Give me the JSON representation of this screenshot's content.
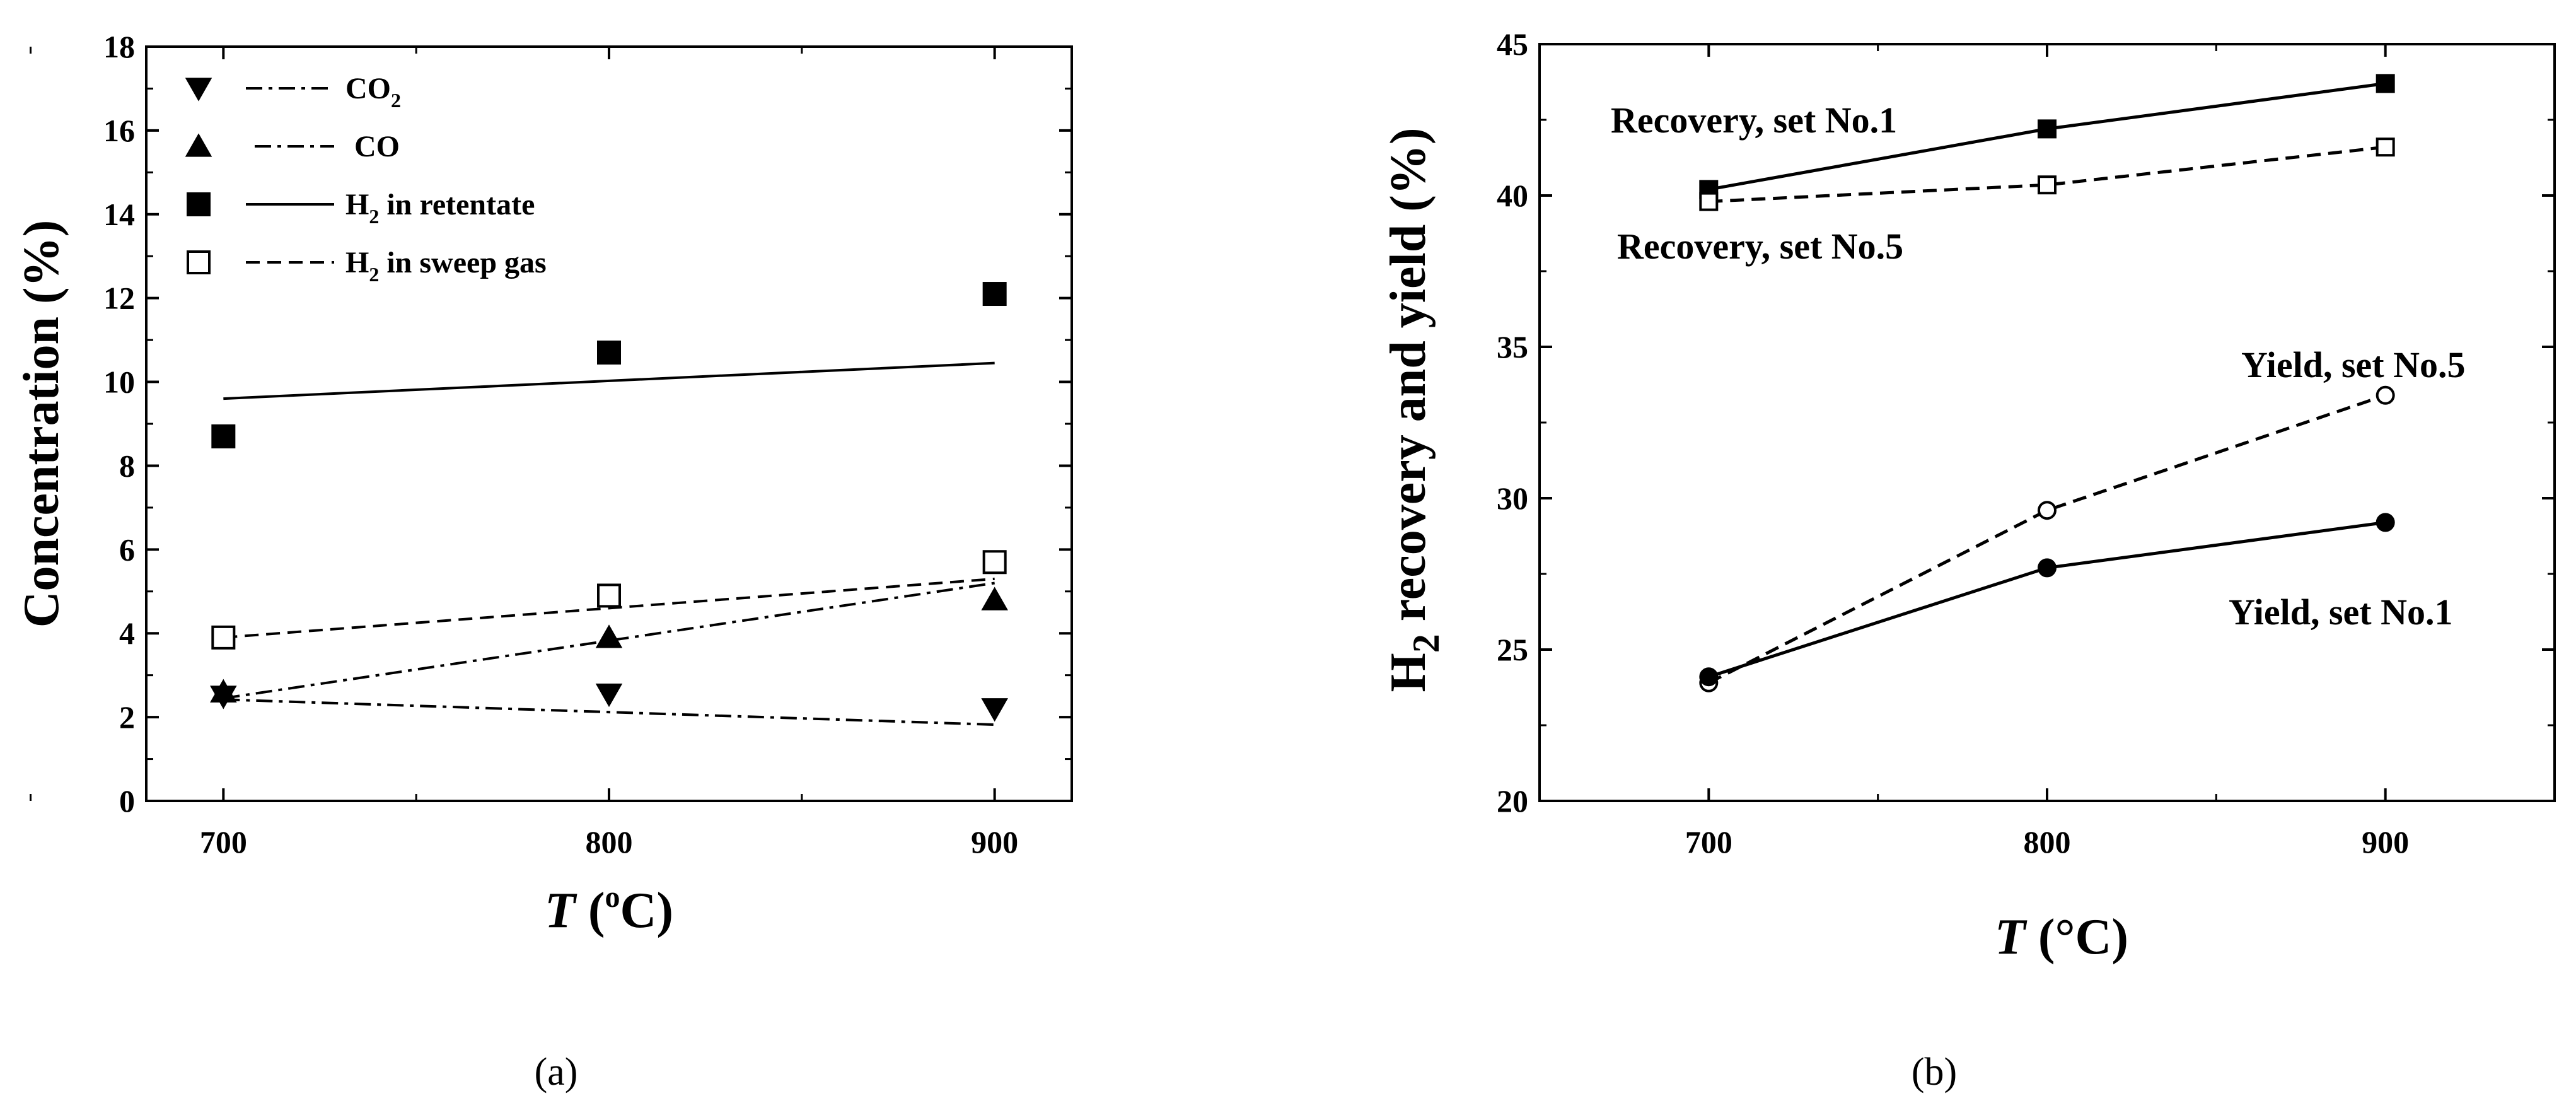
{
  "chart_data": [
    {
      "type": "scatter",
      "panel_label": "(a)",
      "xlabel": {
        "var": "T",
        "pre": " (",
        "sup": "o",
        "post": "C)"
      },
      "ylabel": "Concentration (%)",
      "xlim": [
        680,
        920
      ],
      "ylim": [
        0,
        18
      ],
      "x_ticks": [
        700,
        800,
        900
      ],
      "y_ticks": [
        0,
        2,
        4,
        6,
        8,
        10,
        12,
        14,
        16,
        18
      ],
      "legend_position": "top-left",
      "series": [
        {
          "name": "CO2",
          "label_main": "CO",
          "label_sub": "2",
          "marker": "triangle-down-filled",
          "line": "dashdot",
          "x": [
            700,
            800,
            900
          ],
          "values": [
            2.5,
            2.55,
            2.2
          ],
          "fit": [
            [
              700,
              2.42
            ],
            [
              900,
              1.82
            ]
          ]
        },
        {
          "name": "CO",
          "label_main": "CO",
          "label_sub": "",
          "marker": "triangle-up-filled",
          "line": "dashdot",
          "x": [
            700,
            800,
            900
          ],
          "values": [
            2.6,
            3.9,
            4.8
          ],
          "fit": [
            [
              700,
              2.45
            ],
            [
              900,
              5.2
            ]
          ]
        },
        {
          "name": "H2 in retentate",
          "label_main": "H",
          "label_sub": "2",
          "label_rest": " in retentate",
          "marker": "square-filled",
          "line": "solid",
          "x": [
            700,
            800,
            900
          ],
          "values": [
            8.7,
            10.7,
            12.1
          ],
          "fit": [
            [
              700,
              9.6
            ],
            [
              900,
              10.45
            ]
          ]
        },
        {
          "name": "H2 in sweep gas",
          "label_main": "H",
          "label_sub": "2",
          "label_rest": " in sweep gas",
          "marker": "square-open",
          "line": "dashed",
          "x": [
            700,
            800,
            900
          ],
          "values": [
            3.9,
            4.9,
            5.7
          ],
          "fit": [
            [
              700,
              3.9
            ],
            [
              900,
              5.3
            ]
          ]
        }
      ]
    },
    {
      "type": "line",
      "panel_label": "(b)",
      "xlabel": {
        "var": "T",
        "post": " (°C)"
      },
      "ylabel": {
        "pre": "H",
        "sub": "2",
        "post": " recovery and yield (%)"
      },
      "xlim": [
        650,
        950
      ],
      "ylim": [
        20,
        45
      ],
      "x_ticks": [
        700,
        800,
        900
      ],
      "y_ticks": [
        20,
        25,
        30,
        35,
        40,
        45
      ],
      "series": [
        {
          "name": "Recovery, set No.1",
          "marker": "square-filled",
          "line": "solid",
          "x": [
            700,
            800,
            900
          ],
          "values": [
            40.2,
            42.2,
            43.7
          ]
        },
        {
          "name": "Recovery, set No.5",
          "marker": "square-open",
          "line": "dashed",
          "x": [
            700,
            800,
            900
          ],
          "values": [
            39.8,
            40.35,
            41.6
          ]
        },
        {
          "name": "Yield, set No.5",
          "marker": "circle-open",
          "line": "dashed",
          "x": [
            700,
            800,
            900
          ],
          "values": [
            23.9,
            29.6,
            33.4
          ]
        },
        {
          "name": "Yield, set No.1",
          "marker": "circle-filled",
          "line": "solid",
          "x": [
            700,
            800,
            900
          ],
          "values": [
            24.1,
            27.7,
            29.2
          ]
        }
      ]
    }
  ]
}
